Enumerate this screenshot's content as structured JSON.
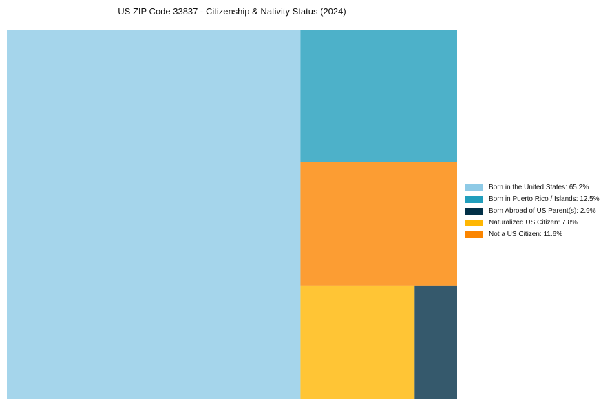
{
  "chart_data": {
    "type": "treemap",
    "title": "US ZIP Code 33837 - Citizenship & Nativity Status (2024)",
    "legend_position": "right",
    "tile_opacity": 0.8,
    "series": [
      {
        "name": "Born in the United States",
        "value": 65.2,
        "color": "#8ECAE6",
        "legend": "Born in the United States: 65.2%"
      },
      {
        "name": "Born in Puerto Rico / Islands",
        "value": 12.5,
        "color": "#219EBC",
        "legend": "Born in Puerto Rico / Islands: 12.5%"
      },
      {
        "name": "Born Abroad of US Parent(s)",
        "value": 2.9,
        "color": "#023047",
        "legend": "Born Abroad of US Parent(s): 2.9%"
      },
      {
        "name": "Naturalized US Citizen",
        "value": 7.8,
        "color": "#FFB703",
        "legend": "Naturalized US Citizen: 7.8%"
      },
      {
        "name": "Not a US Citizen",
        "value": 11.6,
        "color": "#FB8500",
        "legend": "Not a US Citizen: 11.6%"
      }
    ]
  }
}
